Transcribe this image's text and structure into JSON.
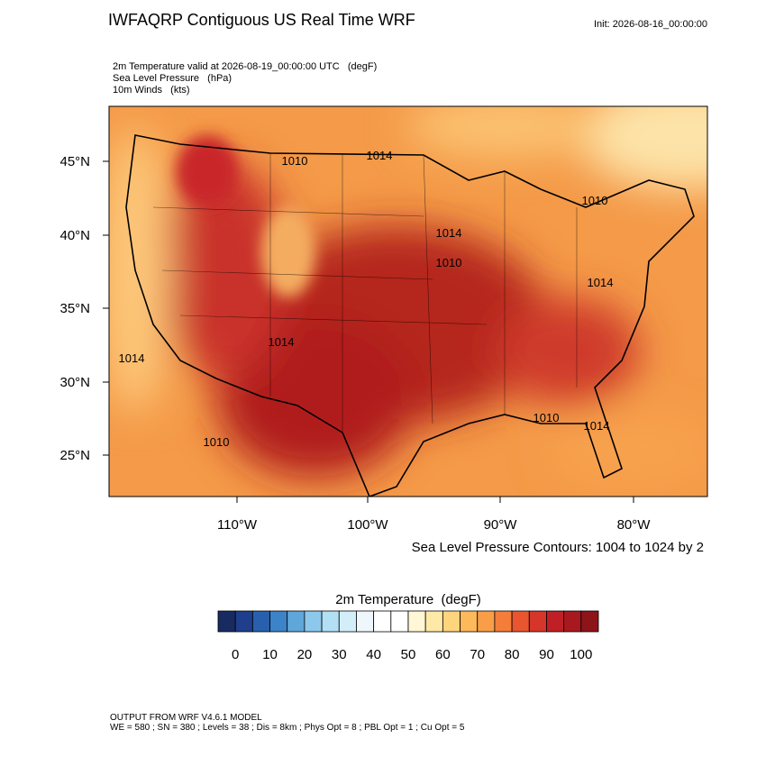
{
  "header": {
    "title": "IWFAQRP Contiguous US Real Time WRF",
    "init": "Init: 2026-08-16_00:00:00",
    "fields": [
      "2m Temperature valid at 2026-08-19_00:00:00 UTC   (degF)",
      "Sea Level Pressure   (hPa)",
      "10m Winds   (kts)"
    ]
  },
  "map": {
    "lat_labels": [
      "45°N",
      "40°N",
      "35°N",
      "30°N",
      "25°N"
    ],
    "lon_labels": [
      "110°W",
      "100°W",
      "90°W",
      "80°W"
    ],
    "contour_labels": [
      "1014",
      "1010",
      "1010",
      "1014",
      "1010",
      "1014",
      "1014",
      "1010",
      "1014",
      "1014",
      "1010"
    ],
    "contour_note": "Sea Level Pressure Contours: 1004 to 1024 by 2"
  },
  "colorbar": {
    "title": "2m Temperature  (degF)",
    "ticks": [
      0,
      10,
      20,
      30,
      40,
      50,
      60,
      70,
      80,
      90,
      100
    ],
    "colors": [
      "#182b61",
      "#1f3f8c",
      "#2860ad",
      "#3d83c8",
      "#5fa7d9",
      "#8cc8ec",
      "#b3dff5",
      "#d3eef9",
      "#eef8fc",
      "#ffffff",
      "#ffffff",
      "#fff7d6",
      "#ffe9a6",
      "#fed47c",
      "#fdb95a",
      "#f99e47",
      "#f47d3a",
      "#e8552f",
      "#d63529",
      "#c01f26",
      "#a8191f",
      "#8d1419"
    ]
  },
  "footer": [
    "OUTPUT FROM WRF V4.6.1 MODEL",
    "WE = 580 ; SN = 380 ; Levels = 38 ; Dis = 8km ; Phys Opt = 8 ; PBL Opt = 1 ; Cu Opt = 5"
  ]
}
